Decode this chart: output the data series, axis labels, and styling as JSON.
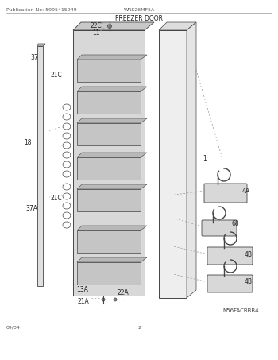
{
  "pub_no": "Publication No: 5995415949",
  "model": "WRS26MF5A",
  "section": "FREEZER DOOR",
  "image_code": "N56FACBBB4",
  "date": "09/04",
  "page": "2",
  "bg_color": "#ffffff",
  "line_color": "#444444",
  "light_gray": "#e0e0e0",
  "mid_gray": "#cccccc",
  "dark_gray": "#aaaaaa"
}
